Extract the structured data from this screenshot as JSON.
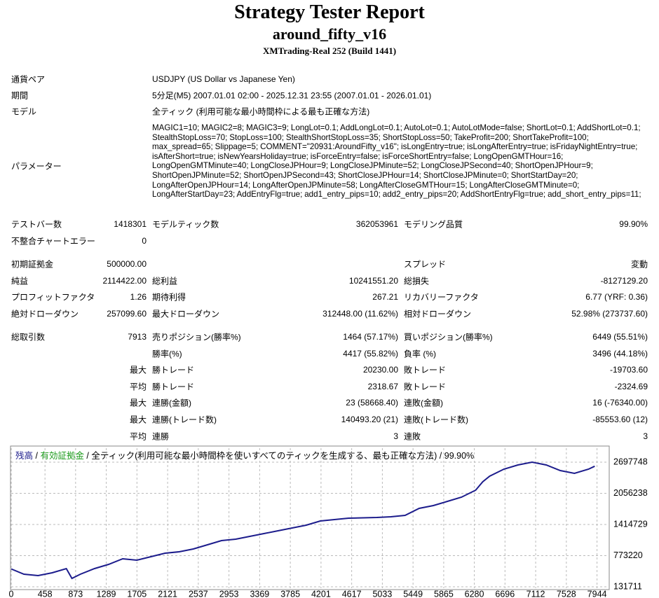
{
  "header": {
    "title": "Strategy Tester Report",
    "expert": "around_fifty_v16",
    "server": "XMTrading-Real 252 (Build 1441)"
  },
  "info": [
    {
      "label": "通貨ペア",
      "value": "USDJPY (US Dollar vs Japanese Yen)"
    },
    {
      "label": "期間",
      "value": "5分足(M5) 2007.01.01 02:00 - 2025.12.31 23:55 (2007.01.01 - 2026.01.01)"
    },
    {
      "label": "モデル",
      "value": "全ティック (利用可能な最小時間枠による最も正確な方法)"
    }
  ],
  "parameters": {
    "label": "パラメーター",
    "value": "MAGIC1=10; MAGIC2=8; MAGIC3=9; LongLot=0.1; AddLongLot=0.1; AutoLot=0.1; AutoLotMode=false; ShortLot=0.1; AddShortLot=0.1; StealthStopLoss=70; StopLoss=100; StealthShortStopLoss=35; ShortStopLoss=50; TakeProfit=200; ShortTakeProfit=100; max_spread=65; Slippage=5; COMMENT=\"20931:AroundFifty_v16\"; isLongEntry=true; isLongAfterEntry=true; isFridayNightEntry=true; isAfterShort=true; isNewYearsHoliday=true; isForceEntry=false; isForceShortEntry=false; LongOpenGMTHour=16; LongOpenGMTMinute=40; LongCloseJPHour=9; LongCloseJPMinute=52; LongCloseJPSecond=40; ShortOpenJPHour=9; ShortOpenJPMinute=52; ShortOpenJPSecond=43; ShortCloseJPHour=14; ShortCloseJPMinute=0; ShortStartDay=20; LongAfterOpenJPHour=14; LongAfterOpenJPMinute=58; LongAfterCloseGMTHour=15; LongAfterCloseGMTMinute=0; LongAfterStartDay=23; AddEntryFlg=true; add1_entry_pips=10; add2_entry_pips=20; AddShortEntryFlg=true; add_short_entry_pips=11;"
  },
  "stats": [
    [
      [
        "テストバー数",
        "1418301",
        "モデルティック数",
        "362053961",
        "モデリング品質",
        "99.90%"
      ],
      [
        "不整合チャートエラー",
        "0",
        null,
        null,
        null,
        null
      ]
    ],
    [
      [
        "初期証拠金",
        "500000.00",
        null,
        null,
        "スプレッド",
        "変動"
      ],
      [
        "純益",
        "2114422.00",
        "総利益",
        "10241551.20",
        "総損失",
        "-8127129.20"
      ],
      [
        "プロフィットファクタ",
        "1.26",
        "期待利得",
        "267.21",
        "リカバリーファクタ",
        "6.77 (YRF: 0.36)"
      ],
      [
        "絶対ドローダウン",
        "257099.60",
        "最大ドローダウン",
        "312448.00 (11.62%)",
        "相対ドローダウン",
        "52.98% (273737.60)"
      ]
    ],
    [
      [
        "総取引数",
        "7913",
        "売りポジション(勝率%)",
        "1464 (57.17%)",
        "買いポジション(勝率%)",
        "6449 (55.51%)"
      ],
      [
        null,
        null,
        "勝率(%)",
        "4417 (55.82%)",
        "負率 (%)",
        "3496 (44.18%)"
      ],
      [
        null,
        "最大",
        "勝トレード",
        "20230.00",
        "敗トレード",
        "-19703.60"
      ],
      [
        null,
        "平均",
        "勝トレード",
        "2318.67",
        "敗トレード",
        "-2324.69"
      ],
      [
        null,
        "最大",
        "連勝(金額)",
        "23 (58668.40)",
        "連敗(金額)",
        "16 (-76340.00)"
      ],
      [
        null,
        "最大",
        "連勝(トレード数)",
        "140493.20 (21)",
        "連敗(トレード数)",
        "-85553.60 (12)"
      ],
      [
        null,
        "平均",
        "連勝",
        "3",
        "連敗",
        "3"
      ]
    ]
  ],
  "chart_data": {
    "type": "line",
    "separator": " / ",
    "subtitle": "全ティック(利用可能な最小時間枠を使いすべてのティックを生成する、最も正確な方法)",
    "quality": "99.90%",
    "x": [
      0,
      172,
      364,
      555,
      747,
      823,
      938,
      1129,
      1321,
      1512,
      1704,
      1895,
      2087,
      2278,
      2469,
      2661,
      2852,
      3044,
      3235,
      3426,
      3618,
      3809,
      4001,
      4192,
      4383,
      4575,
      4958,
      5149,
      5341,
      5532,
      5724,
      5915,
      6106,
      6298,
      6394,
      6489,
      6681,
      6872,
      7064,
      7255,
      7446,
      7638,
      7829,
      7913
    ],
    "series": [
      {
        "name": "残高",
        "color": "#1c1c8c",
        "values": [
          500000,
          391000,
          362000,
          420000,
          506000,
          305000,
          391000,
          506000,
          593000,
          708000,
          679000,
          751000,
          824000,
          852000,
          910000,
          997000,
          1083000,
          1112000,
          1170000,
          1227000,
          1285000,
          1343000,
          1400000,
          1487000,
          1516000,
          1544000,
          1559000,
          1573000,
          1602000,
          1746000,
          1804000,
          1890000,
          1977000,
          2121000,
          2294000,
          2409000,
          2554000,
          2640000,
          2698000,
          2640000,
          2525000,
          2467000,
          2554000,
          2614422
        ]
      },
      {
        "name": "有効証拠金",
        "color": "#1a9a1a"
      }
    ],
    "xlim": [
      0,
      8100
    ],
    "xticks": [
      0,
      458,
      873,
      1289,
      1705,
      2121,
      2537,
      2953,
      3369,
      3785,
      4201,
      4617,
      5033,
      5449,
      5865,
      6280,
      6696,
      7112,
      7528,
      7944
    ],
    "ylim": [
      103000,
      2986000
    ],
    "yticks": [
      131711,
      773220,
      1414729,
      2056238,
      2697748
    ],
    "grid": true
  }
}
